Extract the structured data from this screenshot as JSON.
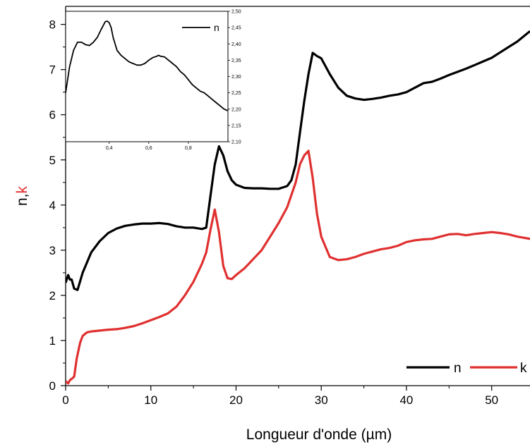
{
  "chart_data": [
    {
      "type": "line",
      "xlabel": "Longueur d'onde (µm)",
      "ylabel_parts": [
        {
          "text": "n",
          "color": "#000000"
        },
        {
          "text": ",",
          "color": "#000000"
        },
        {
          "text": "k",
          "color": "#e03030"
        }
      ],
      "xlim": [
        0,
        54.5
      ],
      "ylim": [
        0,
        8.4
      ],
      "xticks": [
        0,
        10,
        20,
        30,
        40,
        50
      ],
      "yticks": [
        0,
        1,
        2,
        3,
        4,
        5,
        6,
        7,
        8
      ],
      "grid": false,
      "legend": "bottom-right",
      "series": [
        {
          "name": "n",
          "color": "#000000",
          "x": [
            0,
            0.3,
            0.5,
            0.7,
            1.0,
            1.4,
            2.0,
            3.0,
            4.0,
            5.0,
            6.0,
            7.0,
            8.0,
            9.0,
            10.0,
            11.0,
            12.0,
            13.0,
            14.0,
            15.0,
            16.0,
            16.5,
            17.0,
            17.5,
            18.0,
            18.5,
            19.0,
            19.5,
            20.0,
            21.0,
            22.0,
            23.0,
            24.0,
            25.0,
            26.0,
            26.5,
            27.0,
            27.5,
            28.0,
            28.5,
            29.0,
            29.5,
            30.0,
            31.0,
            32.0,
            33.0,
            34.0,
            35.0,
            36.0,
            37.0,
            38.0,
            39.0,
            40.0,
            41.0,
            42.0,
            43.0,
            44.0,
            45.0,
            46.0,
            47.0,
            48.0,
            49.0,
            50.0,
            51.0,
            52.0,
            53.0,
            54.5
          ],
          "values": [
            2.28,
            2.45,
            2.35,
            2.35,
            2.15,
            2.12,
            2.5,
            2.95,
            3.2,
            3.38,
            3.48,
            3.54,
            3.57,
            3.59,
            3.59,
            3.6,
            3.58,
            3.53,
            3.5,
            3.5,
            3.47,
            3.5,
            4.2,
            4.9,
            5.3,
            5.1,
            4.75,
            4.55,
            4.45,
            4.38,
            4.37,
            4.37,
            4.36,
            4.36,
            4.42,
            4.55,
            4.9,
            5.6,
            6.3,
            6.9,
            7.37,
            7.3,
            7.25,
            6.9,
            6.6,
            6.42,
            6.36,
            6.33,
            6.35,
            6.38,
            6.42,
            6.45,
            6.5,
            6.6,
            6.7,
            6.73,
            6.8,
            6.88,
            6.95,
            7.02,
            7.1,
            7.18,
            7.26,
            7.38,
            7.5,
            7.62,
            7.85
          ]
        },
        {
          "name": "k",
          "color": "#e03030",
          "x": [
            0,
            0.3,
            0.5,
            0.7,
            1.0,
            1.3,
            1.7,
            2.0,
            2.5,
            3.0,
            4.0,
            5.0,
            6.0,
            7.0,
            8.0,
            9.0,
            10.0,
            11.0,
            12.0,
            13.0,
            14.0,
            15.0,
            16.0,
            16.5,
            17.0,
            17.5,
            18.0,
            18.5,
            19.0,
            19.5,
            20.0,
            21.0,
            22.0,
            23.0,
            24.0,
            25.0,
            26.0,
            27.0,
            27.5,
            28.0,
            28.5,
            29.0,
            29.5,
            30.0,
            31.0,
            32.0,
            33.0,
            34.0,
            35.0,
            36.0,
            37.0,
            38.0,
            39.0,
            40.0,
            41.0,
            42.0,
            43.0,
            44.0,
            45.0,
            46.0,
            47.0,
            48.0,
            49.0,
            50.0,
            51.0,
            52.0,
            53.0,
            54.5
          ],
          "values": [
            0.1,
            0.05,
            0.12,
            0.15,
            0.2,
            0.6,
            0.95,
            1.1,
            1.18,
            1.2,
            1.22,
            1.24,
            1.25,
            1.28,
            1.32,
            1.38,
            1.45,
            1.52,
            1.6,
            1.75,
            2.0,
            2.3,
            2.7,
            2.95,
            3.45,
            3.9,
            3.4,
            2.65,
            2.38,
            2.36,
            2.45,
            2.6,
            2.8,
            3.0,
            3.3,
            3.6,
            3.95,
            4.5,
            4.9,
            5.1,
            5.2,
            4.6,
            3.8,
            3.3,
            2.85,
            2.78,
            2.8,
            2.85,
            2.92,
            2.97,
            3.02,
            3.05,
            3.1,
            3.18,
            3.22,
            3.24,
            3.25,
            3.3,
            3.35,
            3.36,
            3.33,
            3.36,
            3.38,
            3.4,
            3.38,
            3.35,
            3.3,
            3.25
          ]
        }
      ]
    },
    {
      "type": "line",
      "role": "inset",
      "xlim": [
        0.18,
        1.0
      ],
      "ylim": [
        2.1,
        2.5
      ],
      "xticks": [
        "0,4",
        "0,6",
        "0,8"
      ],
      "xtick_values": [
        0.4,
        0.6,
        0.8
      ],
      "yticks": [
        "2,10",
        "2,15",
        "2,20",
        "2,25",
        "2,30",
        "2,35",
        "2,40",
        "2,45",
        "2,50"
      ],
      "ytick_values": [
        2.1,
        2.15,
        2.2,
        2.25,
        2.3,
        2.35,
        2.4,
        2.45,
        2.5
      ],
      "yaxis_side": "right",
      "legend": "top-right",
      "series": [
        {
          "name": "n",
          "color": "#000000",
          "x": [
            0.18,
            0.2,
            0.22,
            0.24,
            0.26,
            0.28,
            0.3,
            0.32,
            0.34,
            0.36,
            0.38,
            0.39,
            0.4,
            0.41,
            0.42,
            0.44,
            0.46,
            0.48,
            0.5,
            0.52,
            0.54,
            0.56,
            0.58,
            0.6,
            0.62,
            0.64,
            0.65,
            0.66,
            0.68,
            0.7,
            0.72,
            0.74,
            0.76,
            0.78,
            0.8,
            0.82,
            0.84,
            0.86,
            0.88,
            0.9,
            0.92,
            0.94,
            0.96,
            0.98,
            1.0
          ],
          "values": [
            2.25,
            2.33,
            2.38,
            2.405,
            2.405,
            2.398,
            2.395,
            2.405,
            2.42,
            2.445,
            2.468,
            2.47,
            2.465,
            2.45,
            2.42,
            2.38,
            2.365,
            2.355,
            2.345,
            2.34,
            2.335,
            2.335,
            2.34,
            2.35,
            2.358,
            2.362,
            2.365,
            2.362,
            2.36,
            2.35,
            2.34,
            2.33,
            2.315,
            2.305,
            2.29,
            2.275,
            2.265,
            2.255,
            2.25,
            2.24,
            2.23,
            2.22,
            2.21,
            2.2,
            2.195
          ]
        }
      ]
    }
  ]
}
